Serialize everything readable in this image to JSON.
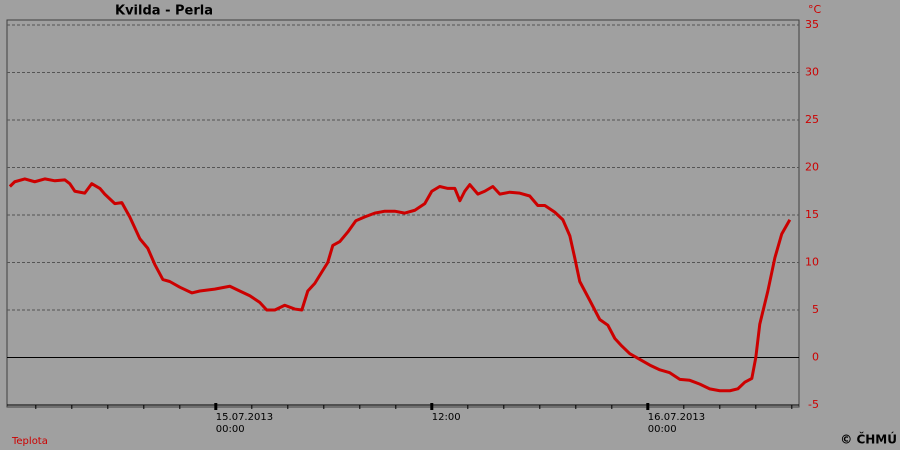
{
  "chart_data": {
    "type": "line",
    "title": "Kvilda - Perla",
    "y_unit": "°C",
    "x": [
      12.56,
      12.83,
      13.39,
      13.94,
      14.5,
      15.06,
      15.61,
      15.89,
      16.17,
      16.72,
      17.11,
      17.56,
      17.83,
      18.39,
      18.78,
      19.22,
      19.78,
      20.22,
      20.61,
      21.06,
      21.44,
      22.0,
      22.67,
      23.11,
      23.94,
      24.78,
      25.33,
      25.89,
      26.44,
      26.83,
      27.28,
      27.83,
      28.39,
      28.78,
      29.11,
      29.5,
      29.89,
      30.22,
      30.5,
      30.89,
      31.33,
      31.78,
      32.28,
      32.83,
      33.39,
      33.94,
      34.5,
      35.06,
      35.61,
      36.0,
      36.44,
      36.89,
      37.28,
      37.56,
      37.83,
      38.11,
      38.56,
      38.94,
      39.39,
      39.78,
      40.33,
      40.89,
      41.44,
      41.89,
      42.28,
      42.83,
      43.28,
      43.67,
      43.94,
      44.22,
      44.78,
      45.33,
      45.78,
      46.17,
      46.56,
      47.0,
      47.56,
      48.11,
      48.67,
      49.22,
      49.78,
      50.33,
      50.89,
      51.44,
      52.0,
      52.56,
      53.0,
      53.39,
      53.78,
      54.0,
      54.22,
      54.67,
      55.06,
      55.44,
      55.89
    ],
    "series": [
      {
        "name": "Teplota",
        "color": "#cc0000",
        "values": [
          18,
          18.5,
          18.8,
          18.5,
          18.8,
          18.6,
          18.7,
          18.3,
          17.5,
          17.3,
          18.3,
          17.8,
          17.2,
          16.2,
          16.3,
          14.8,
          12.5,
          11.5,
          9.8,
          8.2,
          8.0,
          7.4,
          6.8,
          7.0,
          7.2,
          7.5,
          7.0,
          6.5,
          5.8,
          5.0,
          5.0,
          5.5,
          5.1,
          5.0,
          7.0,
          7.8,
          9.0,
          10.0,
          11.8,
          12.2,
          13.2,
          14.4,
          14.8,
          15.2,
          15.4,
          15.4,
          15.2,
          15.5,
          16.2,
          17.5,
          18.0,
          17.8,
          17.8,
          16.5,
          17.5,
          18.2,
          17.2,
          17.5,
          18.0,
          17.2,
          17.4,
          17.3,
          17.0,
          16.0,
          16.0,
          15.3,
          14.5,
          12.8,
          10.5,
          8.0,
          6.0,
          4.0,
          3.4,
          2.0,
          1.2,
          0.4,
          -0.2,
          -0.8,
          -1.3,
          -1.6,
          -2.3,
          -2.4,
          -2.8,
          -3.3,
          -3.5,
          -3.5,
          -3.3,
          -2.6,
          -2.2,
          0,
          3.5,
          7,
          10.5,
          13,
          14.5
        ]
      }
    ],
    "xlim": [
      12.4,
      56.4
    ],
    "xticks": [
      {
        "value": 24,
        "label": [
          "15.07.2013",
          "00:00"
        ]
      },
      {
        "value": 36,
        "label": [
          "12:00"
        ]
      },
      {
        "value": 48,
        "label": [
          "16.07.2013",
          "00:00"
        ]
      }
    ],
    "xminor_ticks": [
      14,
      16,
      18,
      20,
      22,
      24,
      26,
      28,
      30,
      32,
      34,
      36,
      38,
      40,
      42,
      44,
      46,
      48,
      50,
      52,
      54,
      56
    ],
    "ylim": [
      -5,
      35
    ],
    "yticks": [
      -5,
      0,
      5,
      10,
      15,
      20,
      25,
      30,
      35
    ],
    "grid": true,
    "zero_line": true,
    "copyright": "© ČHMÚ"
  }
}
